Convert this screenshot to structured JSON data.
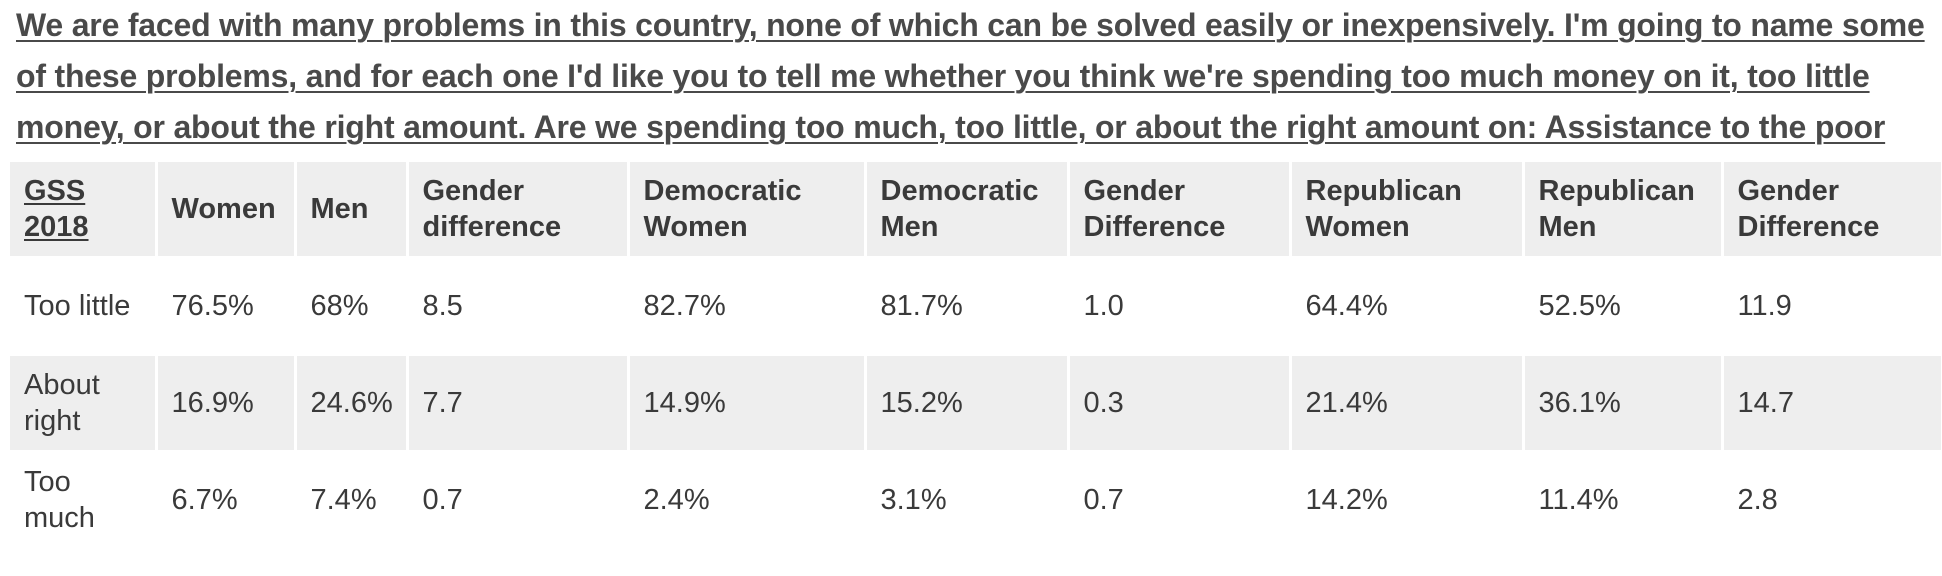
{
  "question": "We are faced with many problems in this country, none of which can be solved easily or inexpensively. I'm going to name some of these problems, and for each one I'd like you to tell me whether you think we're spending too much money on it, too little money, or about the right amount. Are we spending too much, too little, or about the right amount on: Assistance to the poor",
  "table": {
    "corner_label": "GSS 2018",
    "columns": [
      "Women",
      "Men",
      "Gender difference",
      "Democratic Women",
      "Democratic Men",
      "Gender Difference",
      "Republican Women",
      "Republican Men",
      "Gender Difference"
    ],
    "rows": [
      {
        "label": "Too little",
        "cells": [
          "76.5%",
          "68%",
          "8.5",
          "82.7%",
          "81.7%",
          "1.0",
          "64.4%",
          "52.5%",
          "11.9"
        ]
      },
      {
        "label": "About right",
        "cells": [
          "16.9%",
          "24.6%",
          "7.7",
          "14.9%",
          "15.2%",
          "0.3",
          "21.4%",
          "36.1%",
          "14.7"
        ]
      },
      {
        "label": "Too much",
        "cells": [
          "6.7%",
          "7.4%",
          "0.7",
          "2.4%",
          "3.1%",
          "0.7",
          "14.2%",
          "11.4%",
          "2.8"
        ]
      }
    ]
  },
  "colors": {
    "header_background": "#eeeeee",
    "shaded_row_background": "#eeeeee",
    "text": "#3a3a3a"
  }
}
